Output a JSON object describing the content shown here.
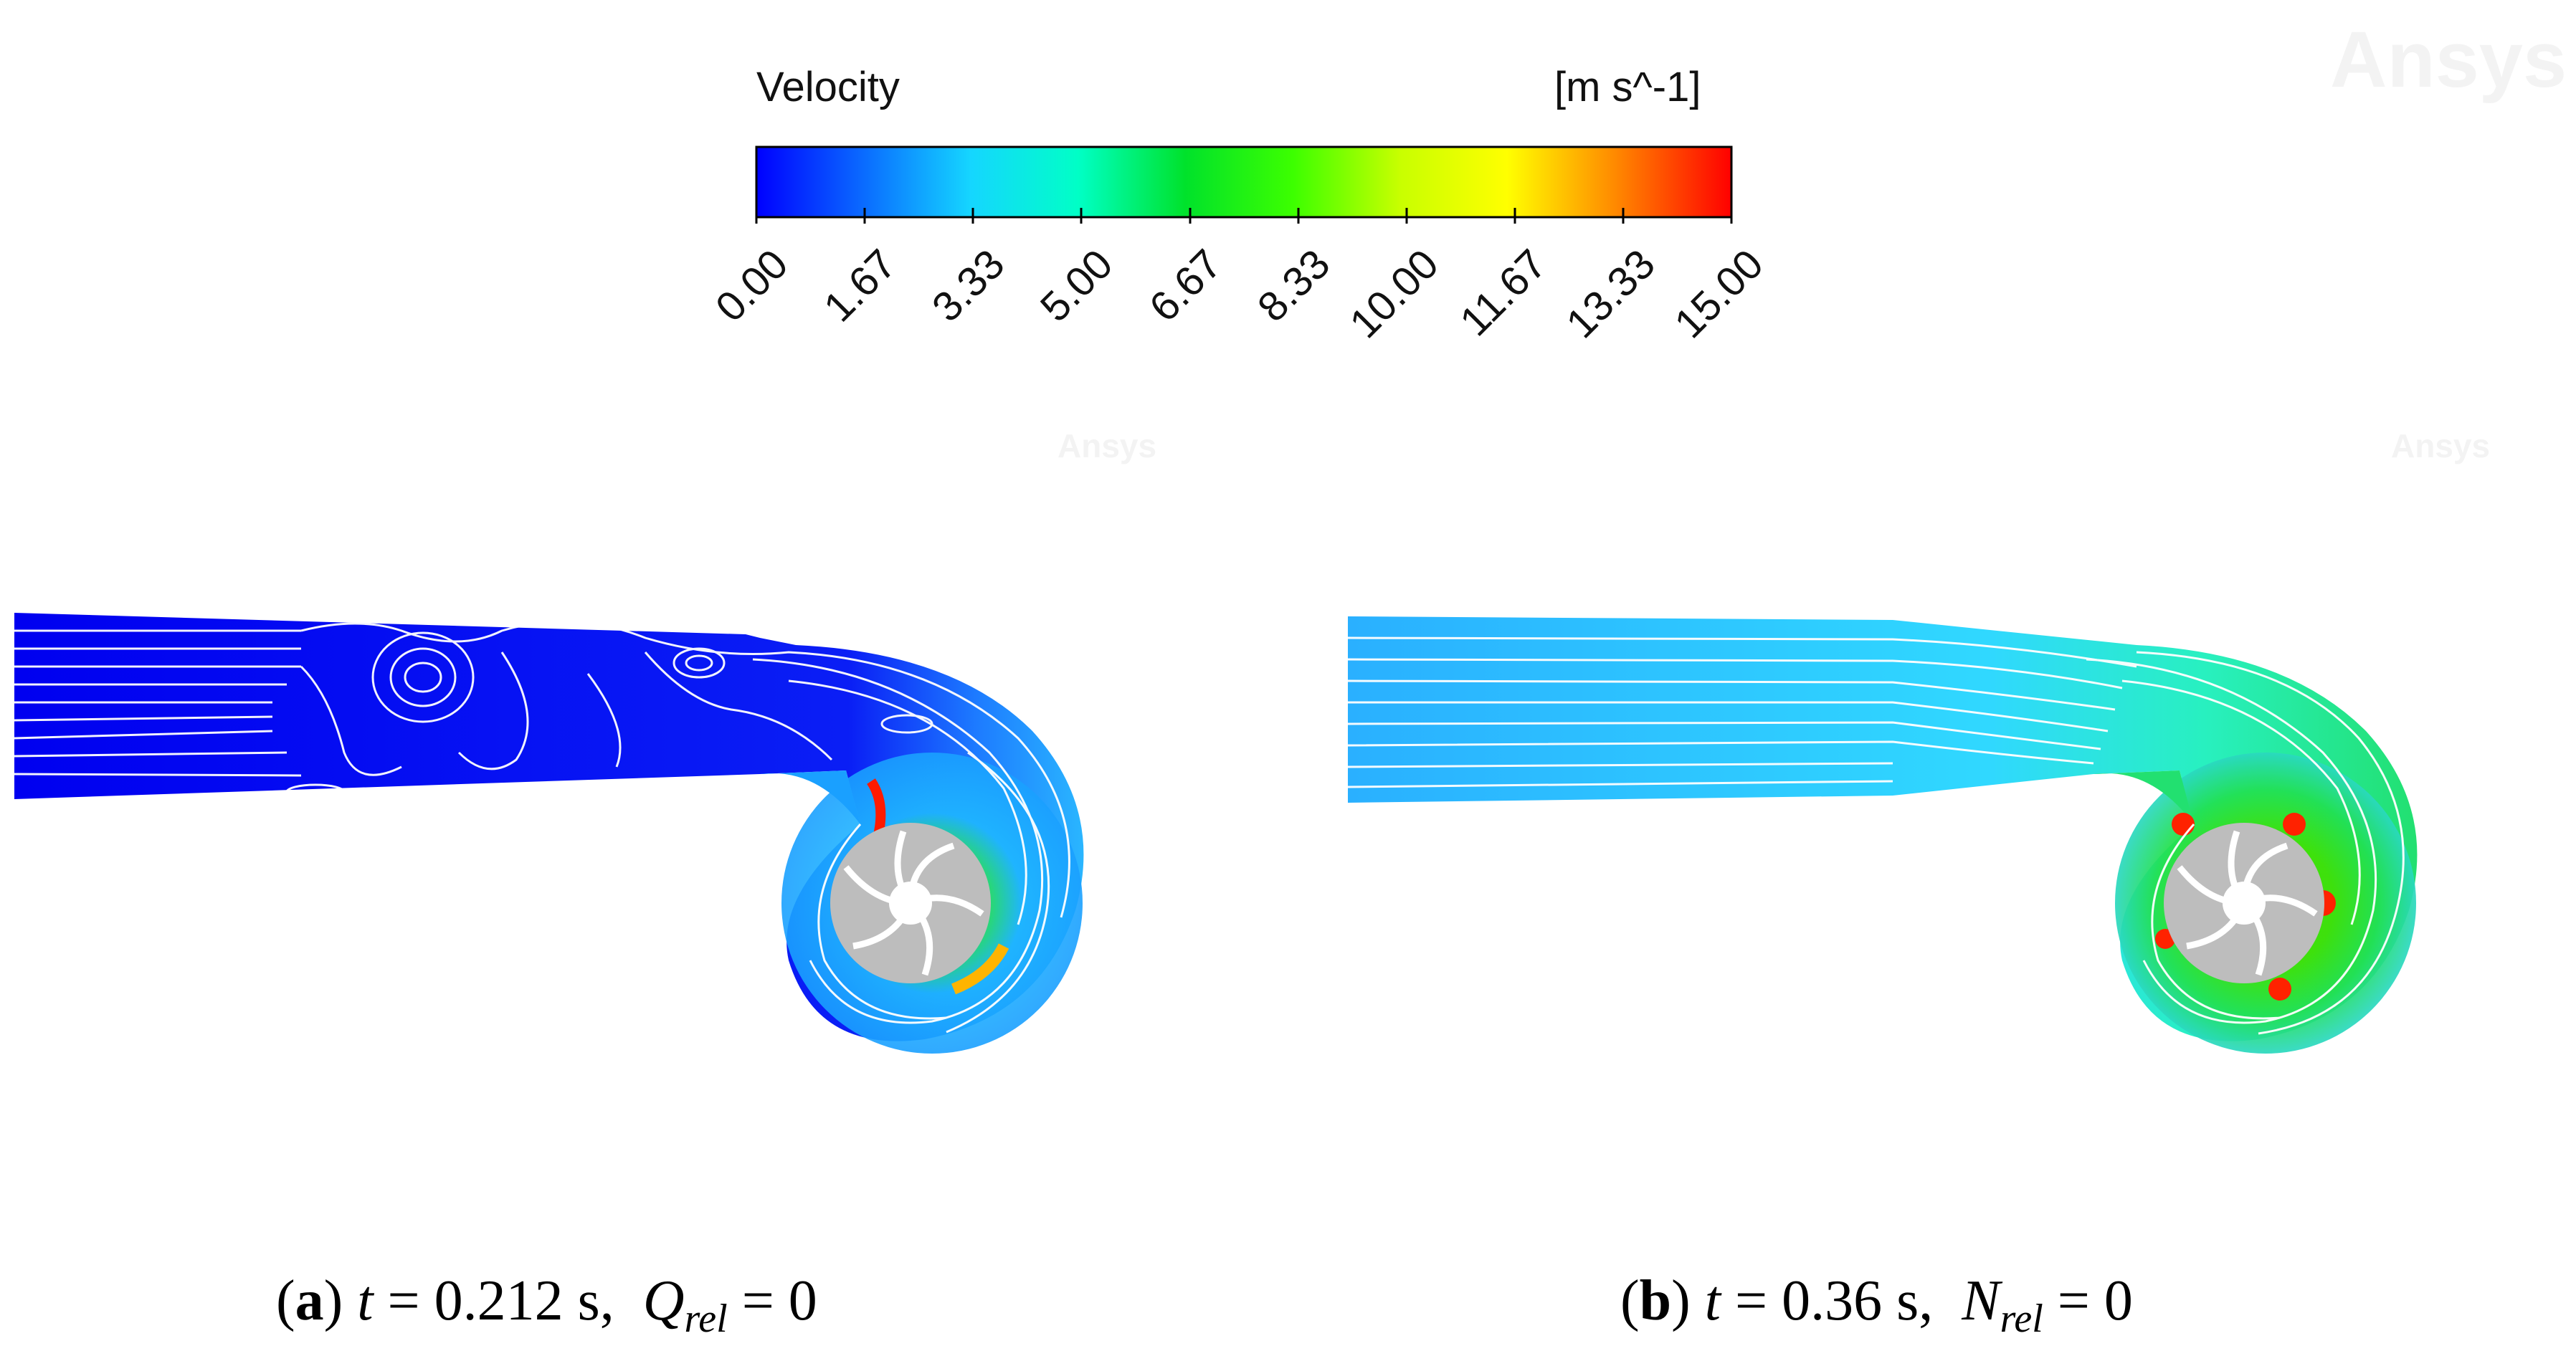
{
  "legend": {
    "title": "Velocity",
    "unit": "[m s^-1]",
    "ticks": [
      "0.00",
      "1.67",
      "3.33",
      "5.00",
      "6.67",
      "8.33",
      "10.00",
      "11.67",
      "13.33",
      "15.00"
    ],
    "colors": [
      "#0000ff",
      "#0a6bff",
      "#15d6ff",
      "#00ffc6",
      "#00e22b",
      "#3cff00",
      "#c8ff00",
      "#ffff00",
      "#ff8a00",
      "#ff0000"
    ]
  },
  "watermarks": {
    "top_right": "Ansys",
    "small_left": "Ansys",
    "small_right": "Ansys"
  },
  "panels": [
    {
      "id": "a",
      "letter": "a",
      "t_label": "t",
      "t_text": " = 0.212 s,  ",
      "var": "Q",
      "sub": "rel",
      "value": " = 0"
    },
    {
      "id": "b",
      "letter": "b",
      "t_label": "t",
      "t_text": " = 0.36 s,  ",
      "var": "N",
      "sub": "rel",
      "value": " = 0"
    }
  ]
}
